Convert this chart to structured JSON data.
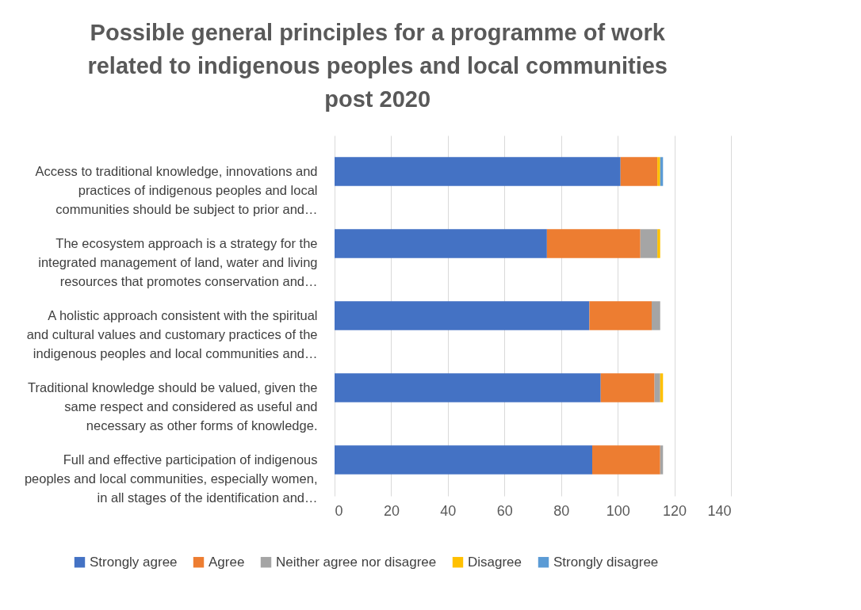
{
  "chart_data": {
    "type": "bar",
    "orientation": "horizontal",
    "stacked": true,
    "title": "Possible general principles for a programme of work related to indigenous peoples and local communities post 2020",
    "categories": [
      "Access to traditional knowledge, innovations and practices of indigenous peoples and local communities should be subject to prior and…",
      "The ecosystem approach is a strategy for the integrated management of land, water and living resources that promotes conservation and…",
      "A holistic approach consistent with the spiritual and cultural values and customary practices of the indigenous peoples and local communities and…",
      "Traditional knowledge should be valued, given the same respect and considered as useful and necessary as other forms of knowledge.",
      "Full and effective participation of indigenous peoples and local communities, especially women, in all stages of the identification and…"
    ],
    "series": [
      {
        "name": "Strongly agree",
        "color": "#4472c4",
        "values": [
          101,
          75,
          90,
          94,
          91
        ]
      },
      {
        "name": "Agree",
        "color": "#ed7d31",
        "values": [
          13,
          33,
          22,
          19,
          24
        ]
      },
      {
        "name": "Neither agree nor disagree",
        "color": "#a5a5a5",
        "values": [
          0,
          6,
          3,
          2,
          1
        ]
      },
      {
        "name": "Disagree",
        "color": "#ffc000",
        "values": [
          1,
          1,
          0,
          1,
          0
        ]
      },
      {
        "name": "Strongly disagree",
        "color": "#5b9bd5",
        "values": [
          1,
          0,
          0,
          0,
          0
        ]
      }
    ],
    "xlim": [
      0,
      140
    ],
    "xticks": [
      0,
      20,
      40,
      60,
      80,
      100,
      120,
      140
    ],
    "grid": "x",
    "legend": "bottom"
  }
}
